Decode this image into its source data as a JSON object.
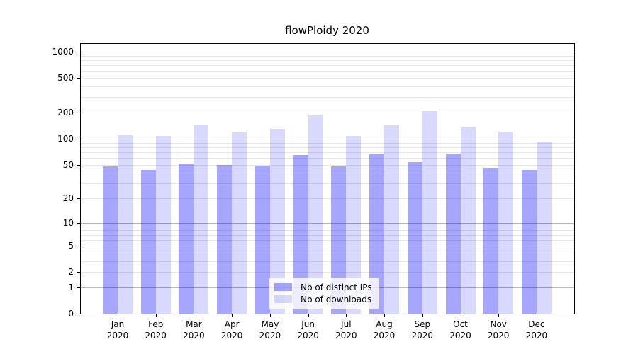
{
  "chart_data": {
    "type": "bar",
    "title": "flowPloidy 2020",
    "categories": [
      "Jan 2020",
      "Feb 2020",
      "Mar 2020",
      "Apr 2020",
      "May 2020",
      "Jun 2020",
      "Jul 2020",
      "Aug 2020",
      "Sep 2020",
      "Oct 2020",
      "Nov 2020",
      "Dec 2020"
    ],
    "series": [
      {
        "name": "Nb of distinct IPs",
        "color": "rgba(0,0,255,0.35)",
        "values": [
          48,
          43,
          51,
          50,
          49,
          65,
          48,
          66,
          53,
          67,
          46,
          43
        ]
      },
      {
        "name": "Nb of downloads",
        "color": "rgba(0,0,255,0.15)",
        "values": [
          110,
          108,
          146,
          119,
          129,
          186,
          107,
          143,
          208,
          135,
          121,
          92
        ]
      }
    ],
    "y_scale": "log1p",
    "y_ticks": [
      0,
      1,
      2,
      5,
      10,
      20,
      50,
      100,
      200,
      500,
      1000
    ],
    "ylim": [
      0,
      1240
    ],
    "grid": "both",
    "legend_position": "lower-center",
    "colors": {
      "grid_major": "#b6b6b6",
      "grid_minor": "#e7e7e7",
      "axis": "#000000",
      "background": "#ffffff"
    }
  }
}
